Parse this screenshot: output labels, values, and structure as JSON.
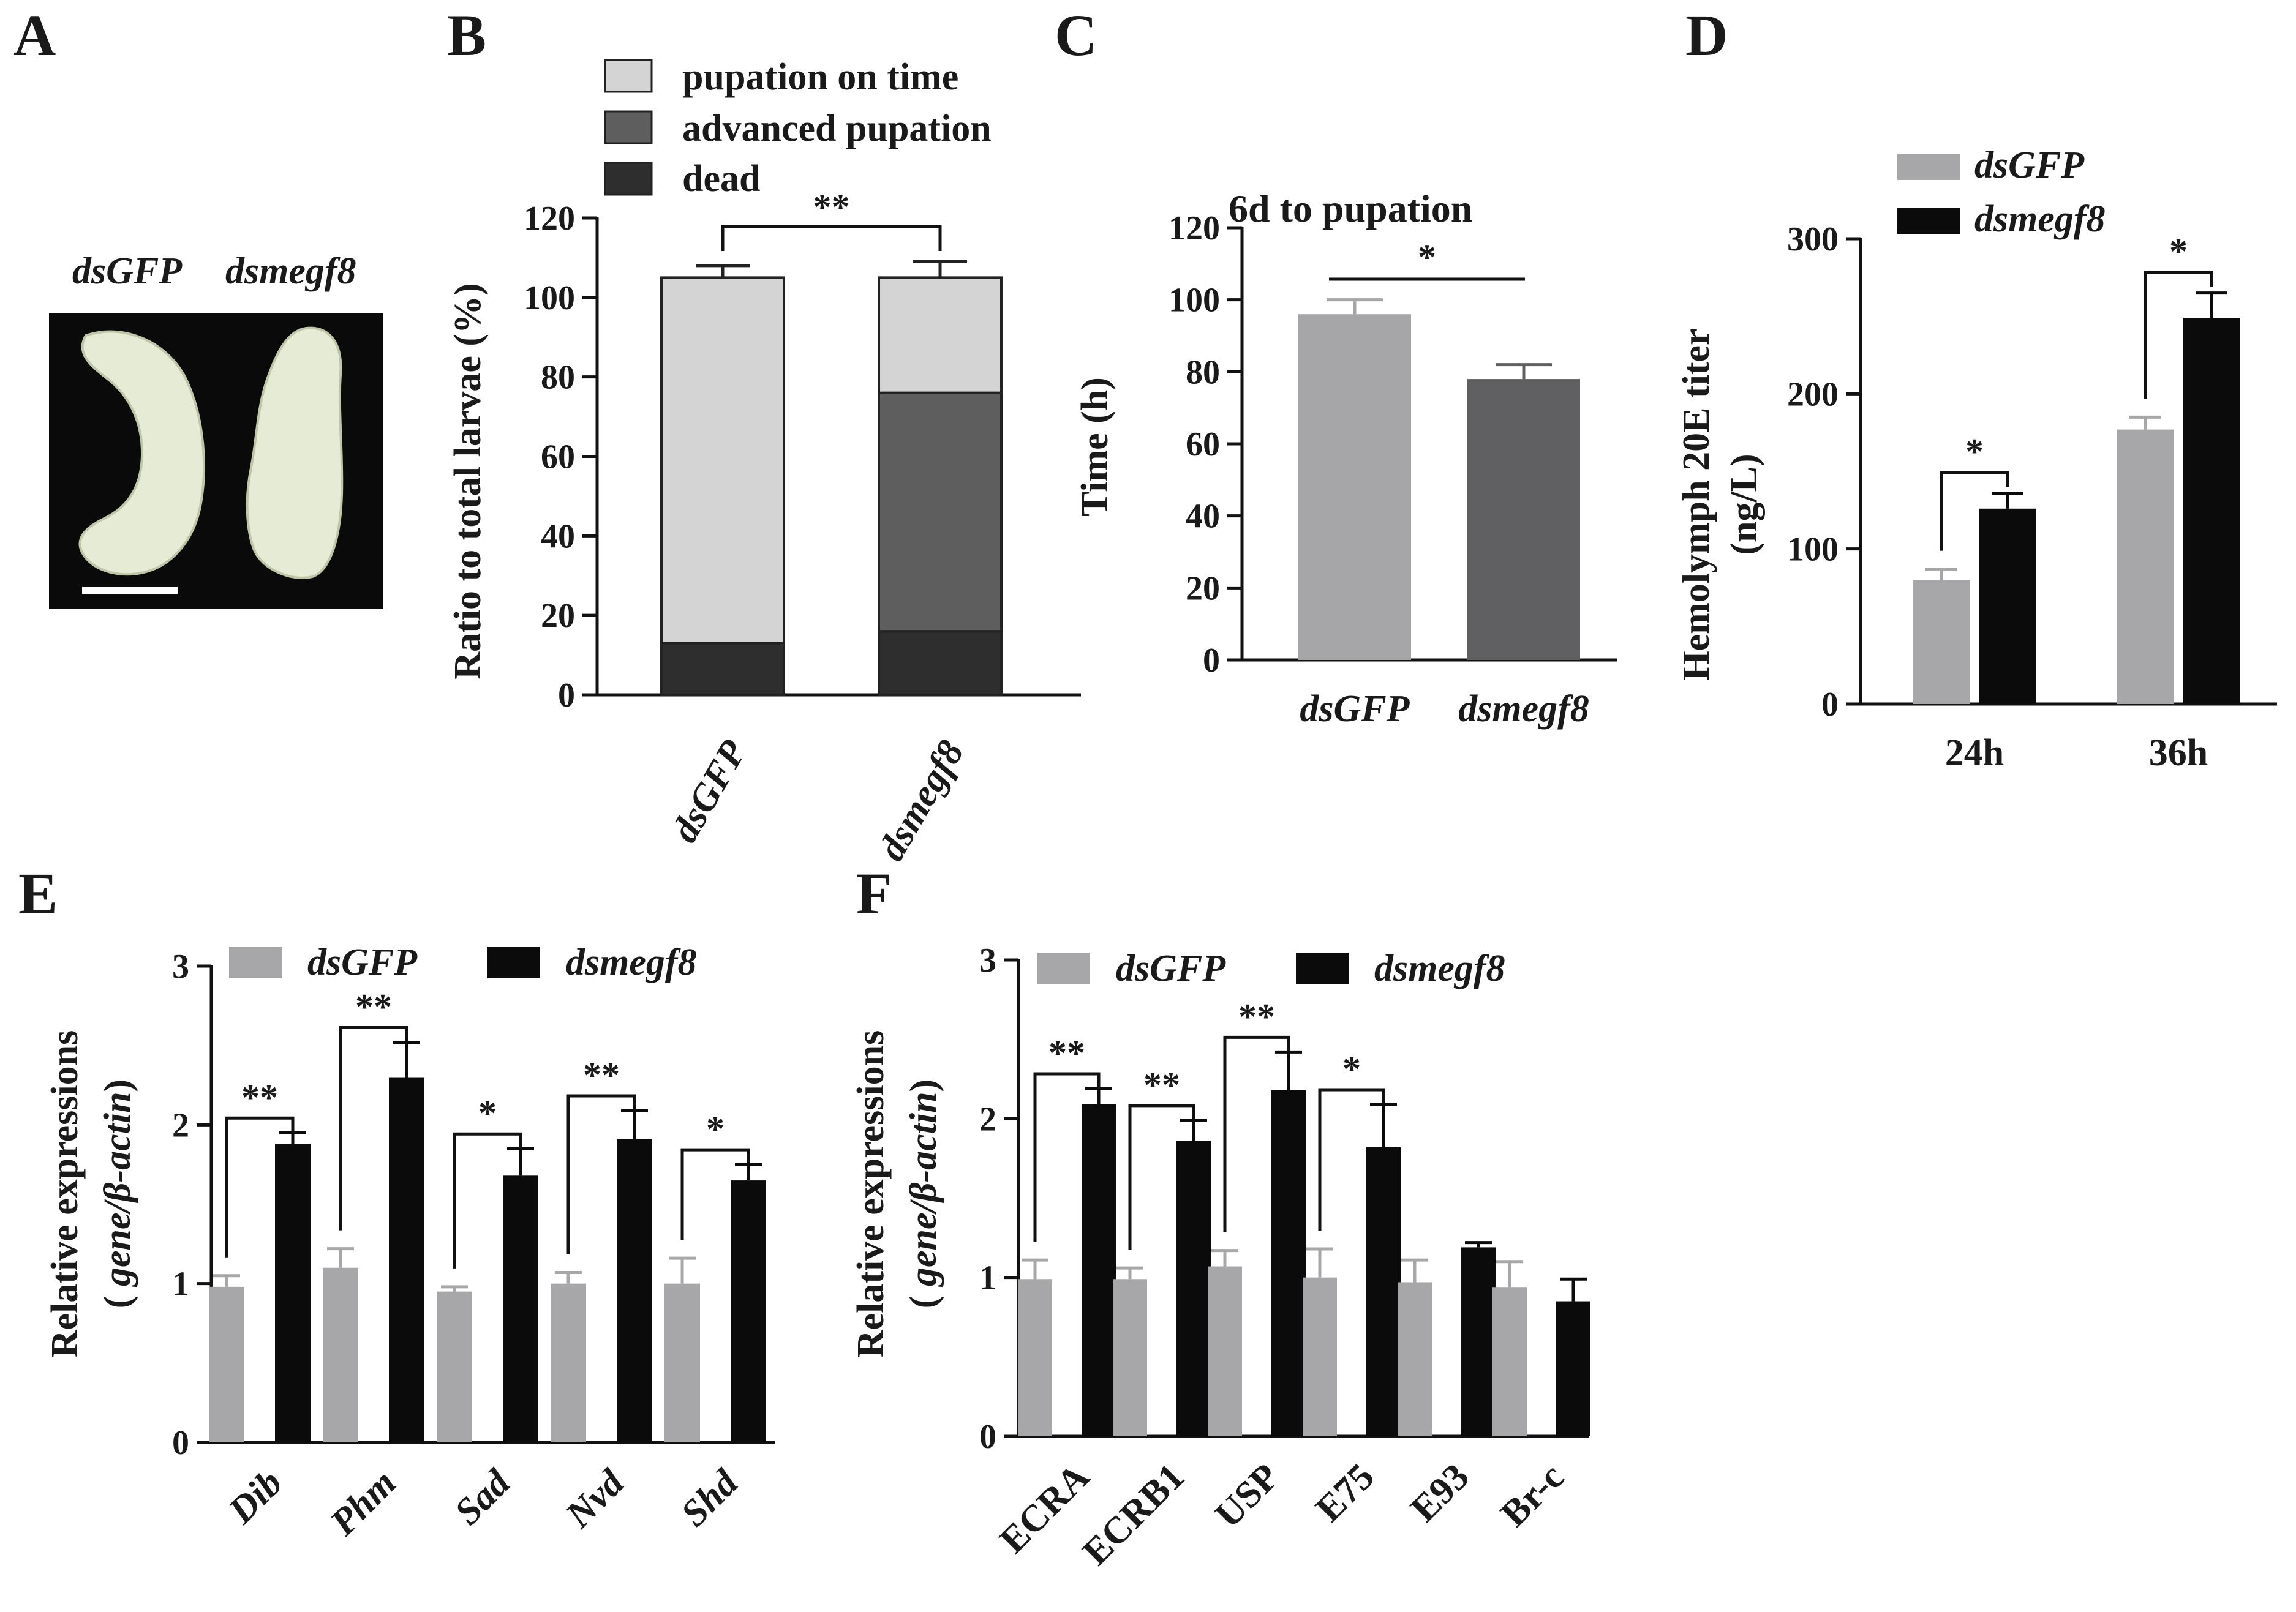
{
  "panels": {
    "A": "A",
    "B": "B",
    "C": "C",
    "D": "D",
    "E": "E",
    "F": "F"
  },
  "photo": {
    "labels": [
      "dsGFP",
      "dsmegf8"
    ],
    "colors": {
      "background": "#0a0a0a",
      "larva": "#e6ebd6",
      "larva_edge": "#bfc6a8",
      "scale_bar": "#ffffff"
    }
  },
  "colors": {
    "gray": "#a7a7aa",
    "black": "#0b0b0b",
    "light": "#d4d4d4",
    "mid": "#5e5e5e",
    "dark": "#2e2e2e",
    "c_gray": "#a6a6a9",
    "c_dark": "#606062"
  },
  "chart_data": [
    {
      "id": "B",
      "type": "bar",
      "stacked": true,
      "ylabel": "Ratio to total larvae (%)",
      "ylim": [
        0,
        120
      ],
      "yticks": [
        0,
        20,
        40,
        60,
        80,
        100,
        120
      ],
      "categories": [
        "dsGFP",
        "dsmegf8"
      ],
      "series": [
        {
          "name": "dead",
          "color": "dark",
          "values": [
            13,
            16
          ],
          "errors": [
            4,
            3
          ]
        },
        {
          "name": "advanced pupation",
          "color": "mid",
          "values": [
            0,
            60
          ],
          "errors": [
            0,
            4
          ]
        },
        {
          "name": "pupation on time",
          "color": "light",
          "values": [
            92,
            29
          ],
          "errors": [
            3,
            4
          ]
        }
      ],
      "legend": [
        "pupation on time",
        "advanced pupation",
        "dead"
      ],
      "legend_colors": [
        "light",
        "mid",
        "dark"
      ],
      "significance": [
        {
          "from": 0,
          "to": 1,
          "label": "**"
        }
      ]
    },
    {
      "id": "C",
      "type": "bar",
      "ylabel": "Time (h)",
      "subtitle": "6d to pupation",
      "ylim": [
        0,
        120
      ],
      "yticks": [
        0,
        20,
        40,
        60,
        80,
        100,
        120
      ],
      "categories": [
        "dsGFP",
        "dsmegf8"
      ],
      "values": [
        96,
        78
      ],
      "errors": [
        4,
        4
      ],
      "colors": [
        "c_gray",
        "c_dark"
      ],
      "significance": [
        {
          "from": 0,
          "to": 1,
          "label": "*"
        }
      ]
    },
    {
      "id": "D",
      "type": "bar",
      "ylabel": "Hemolymph 20E titer",
      "ylabel2": "(ng/L)",
      "ylim": [
        0,
        300
      ],
      "yticks": [
        0,
        100,
        200,
        300
      ],
      "categories": [
        "24h",
        "36h"
      ],
      "series": [
        {
          "name": "dsGFP",
          "color": "gray",
          "values": [
            80,
            177
          ],
          "errors": [
            7,
            8
          ]
        },
        {
          "name": "dsmegf8",
          "color": "black",
          "values": [
            126,
            249
          ],
          "errors": [
            10,
            16
          ]
        }
      ],
      "significance": [
        "*",
        "*"
      ]
    },
    {
      "id": "E",
      "type": "bar",
      "ylabel": "Relative expressions",
      "ylabel2_open": "( ",
      "ylabel2_it": "gene/β-actin",
      "ylabel2_close": ")",
      "ylim": [
        0,
        3
      ],
      "yticks": [
        0,
        1,
        2,
        3
      ],
      "categories": [
        "Dib",
        "Phm",
        "Sad",
        "Nvd",
        "Shd"
      ],
      "series": [
        {
          "name": "dsGFP",
          "color": "gray",
          "values": [
            0.98,
            1.1,
            0.95,
            1.0,
            1.0
          ],
          "errors": [
            0.07,
            0.12,
            0.03,
            0.07,
            0.16
          ]
        },
        {
          "name": "dsmegf8",
          "color": "black",
          "values": [
            1.88,
            2.3,
            1.68,
            1.91,
            1.65
          ],
          "errors": [
            0.07,
            0.22,
            0.17,
            0.18,
            0.1
          ]
        }
      ],
      "significance": [
        "**",
        "**",
        "*",
        "**",
        "*"
      ]
    },
    {
      "id": "F",
      "type": "bar",
      "ylabel": "Relative expressions",
      "ylabel2_open": "( ",
      "ylabel2_it": "gene/β-actin",
      "ylabel2_close": ")",
      "ylim": [
        0,
        3
      ],
      "yticks": [
        0,
        1,
        2,
        3
      ],
      "categories": [
        "ECRA",
        "ECRB1",
        "USP",
        "E75",
        "E93",
        "Br-c"
      ],
      "series": [
        {
          "name": "dsGFP",
          "color": "gray",
          "values": [
            0.99,
            0.99,
            1.07,
            1.0,
            0.97,
            0.94
          ],
          "errors": [
            0.12,
            0.07,
            0.1,
            0.18,
            0.14,
            0.16
          ]
        },
        {
          "name": "dsmegf8",
          "color": "black",
          "values": [
            2.09,
            1.86,
            2.18,
            1.82,
            1.19,
            0.85
          ],
          "errors": [
            0.1,
            0.13,
            0.24,
            0.27,
            0.03,
            0.14
          ]
        }
      ],
      "significance": [
        "**",
        "**",
        "**",
        "*",
        "",
        ""
      ]
    }
  ]
}
